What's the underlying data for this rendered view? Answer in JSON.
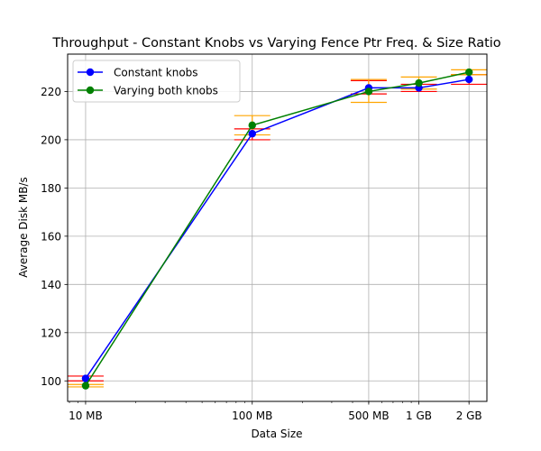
{
  "chart_data": {
    "type": "line",
    "title": "Throughput - Constant Knobs vs Varying Fence Ptr Freq. & Size Ratio",
    "xlabel": "Data Size",
    "ylabel": "Average Disk MB/s",
    "x_scale": "log",
    "x_mb": [
      10,
      100,
      500,
      1000,
      2000
    ],
    "categories": [
      "10 MB",
      "100 MB",
      "500 MB",
      "1 GB",
      "2 GB"
    ],
    "xlim_mb": [
      7.8,
      2560
    ],
    "ylim": [
      91.5,
      235.5
    ],
    "yticks": [
      100,
      120,
      140,
      160,
      180,
      200,
      220
    ],
    "grid": true,
    "legend": "top-left",
    "series": [
      {
        "name": "Constant knobs",
        "color": "#0000ff",
        "errorbar_color": "#ff0000",
        "values": [
          101,
          202.5,
          221.5,
          221.5,
          225
        ],
        "err_low": [
          1,
          2.5,
          2.5,
          1.5,
          2
        ],
        "err_high": [
          1,
          2,
          3,
          1.5,
          2
        ]
      },
      {
        "name": "Varying both knobs",
        "color": "#008000",
        "errorbar_color": "#ffa500",
        "values": [
          98,
          206,
          220,
          223.5,
          228
        ],
        "err_low": [
          0.5,
          4,
          4.5,
          2.5,
          1
        ],
        "err_high": [
          0.5,
          4,
          5,
          2.5,
          1
        ]
      }
    ]
  }
}
